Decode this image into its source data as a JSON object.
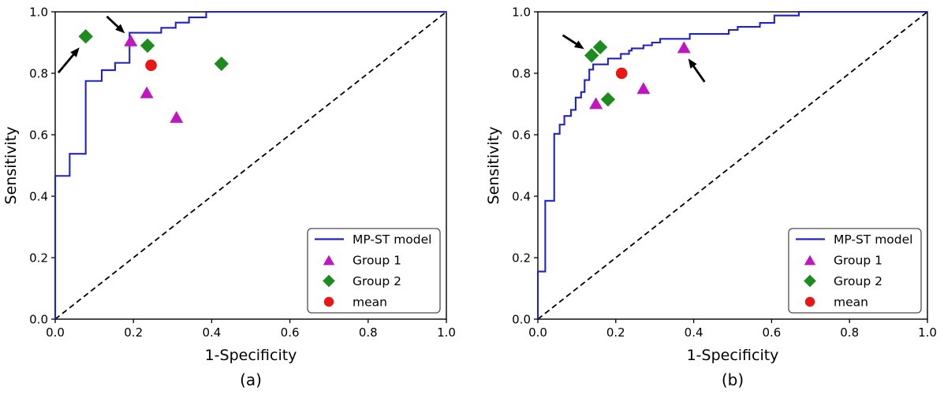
{
  "figure": {
    "background": "#ffffff",
    "colors": {
      "curve_blue": "#2121c8",
      "group1_magenta": "#bf17bf",
      "group2_green": "#1e8b1e",
      "mean_red": "#ea1515",
      "annotation_black": "#000000",
      "legend_border": "#4d4d4d"
    }
  },
  "chart_data": [
    {
      "type": "line",
      "panel_id": "a",
      "caption": "(a)",
      "xlabel": "1-Specificity",
      "ylabel": "Sensitivity",
      "xlim": [
        0.0,
        1.0
      ],
      "ylim": [
        0.0,
        1.0
      ],
      "grid": false,
      "legend_position": "lower right",
      "xticks": [
        "0.0",
        "0.2",
        "0.4",
        "0.6",
        "0.8",
        "1.0"
      ],
      "yticks": [
        "0.0",
        "0.2",
        "0.4",
        "0.6",
        "0.8",
        "1.0"
      ],
      "series": [
        {
          "name": "MP-ST model",
          "kind": "step-line",
          "color": "#2121c8",
          "points": [
            [
              0,
              0
            ],
            [
              0,
              0.466
            ],
            [
              0.037,
              0.466
            ],
            [
              0.037,
              0.538
            ],
            [
              0.078,
              0.538
            ],
            [
              0.078,
              0.775
            ],
            [
              0.119,
              0.775
            ],
            [
              0.119,
              0.81
            ],
            [
              0.153,
              0.81
            ],
            [
              0.153,
              0.834
            ],
            [
              0.19,
              0.834
            ],
            [
              0.19,
              0.932
            ],
            [
              0.271,
              0.932
            ],
            [
              0.271,
              0.948
            ],
            [
              0.308,
              0.948
            ],
            [
              0.308,
              0.965
            ],
            [
              0.342,
              0.965
            ],
            [
              0.342,
              0.982
            ],
            [
              0.386,
              0.982
            ],
            [
              0.386,
              1
            ],
            [
              1,
              1
            ]
          ]
        },
        {
          "name": "Group 1",
          "kind": "scatter",
          "marker": "triangle-up",
          "color": "#bf17bf",
          "points": [
            [
              0.193,
              0.907
            ],
            [
              0.234,
              0.738
            ],
            [
              0.31,
              0.658
            ]
          ]
        },
        {
          "name": "Group 2",
          "kind": "scatter",
          "marker": "diamond",
          "color": "#1e8b1e",
          "points": [
            [
              0.078,
              0.92
            ],
            [
              0.236,
              0.89
            ],
            [
              0.425,
              0.831
            ]
          ]
        },
        {
          "name": "mean",
          "kind": "scatter",
          "marker": "circle",
          "color": "#ea1515",
          "points": [
            [
              0.245,
              0.826
            ]
          ]
        }
      ],
      "reference_line": {
        "kind": "dashed-diagonal",
        "color": "#000000",
        "from": [
          0,
          0
        ],
        "to": [
          1,
          1
        ]
      },
      "annotations": [
        {
          "kind": "arrow",
          "color": "#000000",
          "from": [
            0.008,
            0.802
          ],
          "to": [
            0.062,
            0.884
          ]
        },
        {
          "kind": "arrow",
          "color": "#000000",
          "from": [
            0.132,
            0.985
          ],
          "to": [
            0.178,
            0.93
          ]
        }
      ]
    },
    {
      "type": "line",
      "panel_id": "b",
      "caption": "(b)",
      "xlabel": "1-Specificity",
      "ylabel": "Sensitivity",
      "xlim": [
        0.0,
        1.0
      ],
      "ylim": [
        0.0,
        1.0
      ],
      "grid": false,
      "legend_position": "lower right",
      "xticks": [
        "0.0",
        "0.2",
        "0.4",
        "0.6",
        "0.8",
        "1.0"
      ],
      "yticks": [
        "0.0",
        "0.2",
        "0.4",
        "0.6",
        "0.8",
        "1.0"
      ],
      "series": [
        {
          "name": "MP-ST model",
          "kind": "step-line",
          "color": "#2121c8",
          "points": [
            [
              0,
              0
            ],
            [
              0,
              0.155
            ],
            [
              0.019,
              0.155
            ],
            [
              0.019,
              0.385
            ],
            [
              0.042,
              0.385
            ],
            [
              0.042,
              0.603
            ],
            [
              0.056,
              0.603
            ],
            [
              0.056,
              0.633
            ],
            [
              0.068,
              0.633
            ],
            [
              0.068,
              0.661
            ],
            [
              0.085,
              0.661
            ],
            [
              0.085,
              0.681
            ],
            [
              0.097,
              0.681
            ],
            [
              0.097,
              0.721
            ],
            [
              0.111,
              0.721
            ],
            [
              0.111,
              0.739
            ],
            [
              0.12,
              0.739
            ],
            [
              0.12,
              0.778
            ],
            [
              0.132,
              0.778
            ],
            [
              0.132,
              0.812
            ],
            [
              0.142,
              0.812
            ],
            [
              0.142,
              0.829
            ],
            [
              0.18,
              0.829
            ],
            [
              0.18,
              0.848
            ],
            [
              0.213,
              0.848
            ],
            [
              0.213,
              0.863
            ],
            [
              0.234,
              0.863
            ],
            [
              0.234,
              0.874
            ],
            [
              0.241,
              0.874
            ],
            [
              0.241,
              0.881
            ],
            [
              0.271,
              0.881
            ],
            [
              0.271,
              0.891
            ],
            [
              0.293,
              0.891
            ],
            [
              0.293,
              0.9
            ],
            [
              0.314,
              0.9
            ],
            [
              0.314,
              0.912
            ],
            [
              0.39,
              0.912
            ],
            [
              0.39,
              0.928
            ],
            [
              0.49,
              0.928
            ],
            [
              0.49,
              0.941
            ],
            [
              0.513,
              0.941
            ],
            [
              0.513,
              0.951
            ],
            [
              0.57,
              0.951
            ],
            [
              0.57,
              0.964
            ],
            [
              0.607,
              0.964
            ],
            [
              0.607,
              0.988
            ],
            [
              0.67,
              0.988
            ],
            [
              0.67,
              1
            ],
            [
              1,
              1
            ]
          ]
        },
        {
          "name": "Group 1",
          "kind": "scatter",
          "marker": "triangle-up",
          "color": "#bf17bf",
          "points": [
            [
              0.149,
              0.703
            ],
            [
              0.271,
              0.752
            ],
            [
              0.375,
              0.885
            ]
          ]
        },
        {
          "name": "Group 2",
          "kind": "scatter",
          "marker": "diamond",
          "color": "#1e8b1e",
          "points": [
            [
              0.138,
              0.858
            ],
            [
              0.16,
              0.885
            ],
            [
              0.18,
              0.715
            ]
          ]
        },
        {
          "name": "mean",
          "kind": "scatter",
          "marker": "circle",
          "color": "#ea1515",
          "points": [
            [
              0.215,
              0.8
            ]
          ]
        }
      ],
      "reference_line": {
        "kind": "dashed-diagonal",
        "color": "#000000",
        "from": [
          0,
          0
        ],
        "to": [
          1,
          1
        ]
      },
      "annotations": [
        {
          "kind": "arrow",
          "color": "#000000",
          "from": [
            0.064,
            0.924
          ],
          "to": [
            0.119,
            0.879
          ]
        },
        {
          "kind": "arrow",
          "color": "#000000",
          "from": [
            0.428,
            0.772
          ],
          "to": [
            0.386,
            0.848
          ]
        }
      ]
    }
  ]
}
